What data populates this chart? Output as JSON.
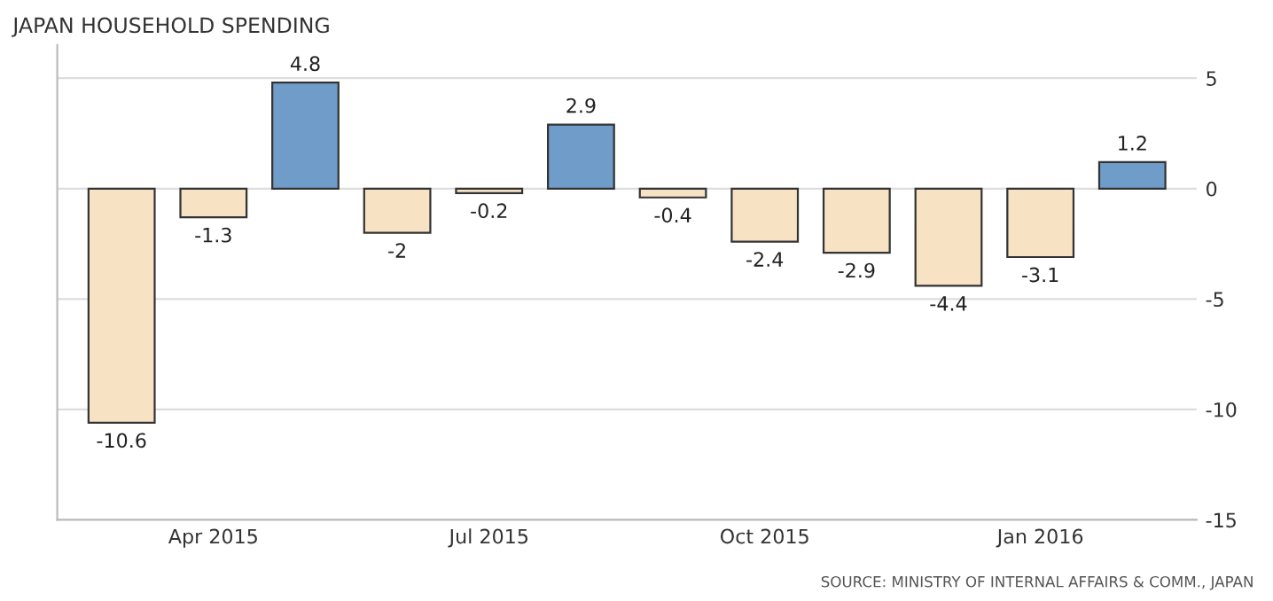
{
  "chart_data": {
    "type": "bar",
    "title": "JAPAN HOUSEHOLD SPENDING",
    "categories": [
      null,
      "Apr 2015",
      null,
      null,
      "Jul 2015",
      null,
      null,
      "Oct 2015",
      null,
      null,
      "Jan 2016",
      null
    ],
    "values": [
      -10.6,
      -1.3,
      4.8,
      -2,
      -0.2,
      2.9,
      -0.4,
      -2.4,
      -2.9,
      -4.4,
      -3.1,
      1.2
    ],
    "colors": [
      "#f7e3c4",
      "#f7e3c4",
      "#6f9cc9",
      "#f7e3c4",
      "#f7e3c4",
      "#6f9cc9",
      "#f7e3c4",
      "#f7e3c4",
      "#f7e3c4",
      "#f7e3c4",
      "#f7e3c4",
      "#6f9cc9"
    ],
    "ylim": [
      -15,
      6.5
    ],
    "yticks": [
      -15,
      -10,
      -5,
      0,
      5
    ],
    "grid": "y",
    "data_labels": true,
    "annotations": [
      "SOURCE: MINISTRY OF INTERNAL AFFAIRS & COMM., JAPAN"
    ]
  }
}
